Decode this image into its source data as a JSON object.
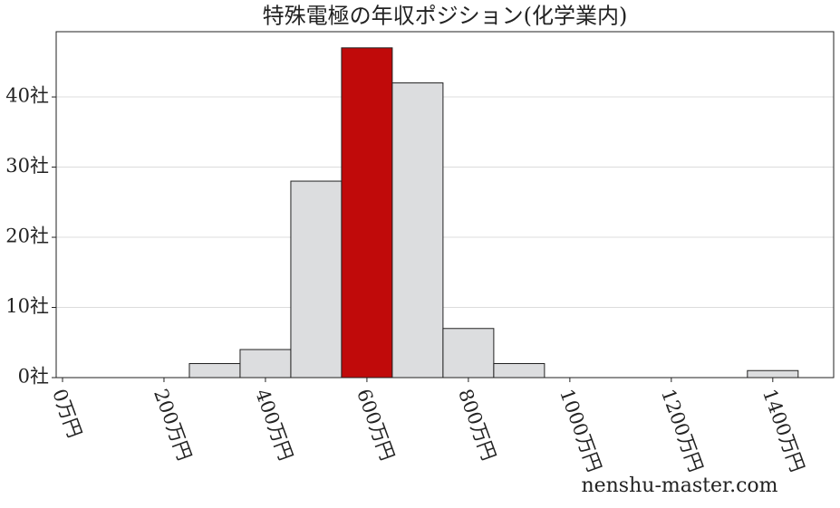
{
  "chart_data": {
    "type": "histogram",
    "title": "特殊電極の年収ポジション(化学業内)",
    "bins": [
      250,
      350,
      450,
      550,
      650,
      750,
      850,
      950,
      1050,
      1150,
      1250,
      1350,
      1450
    ],
    "values": [
      2,
      4,
      28,
      47,
      42,
      7,
      2,
      0,
      0,
      0,
      0,
      1
    ],
    "colors": [
      "#dcdddf",
      "#dcdddf",
      "#dcdddf",
      "#c00a0a",
      "#dcdddf",
      "#dcdddf",
      "#dcdddf",
      "#dcdddf",
      "#dcdddf",
      "#dcdddf",
      "#dcdddf",
      "#dcdddf"
    ],
    "xlim": [
      -12.5,
      1520
    ],
    "xticks": [
      {
        "value": 0,
        "label": "0万円"
      },
      {
        "value": 200,
        "label": "200万円"
      },
      {
        "value": 400,
        "label": "400万円"
      },
      {
        "value": 600,
        "label": "600万円"
      },
      {
        "value": 800,
        "label": "800万円"
      },
      {
        "value": 1000,
        "label": "1000万円"
      },
      {
        "value": 1200,
        "label": "1200万円"
      },
      {
        "value": 1400,
        "label": "1400万円"
      }
    ],
    "ylim": [
      0,
      49.3
    ],
    "yticks": [
      {
        "value": 0,
        "label": "0社"
      },
      {
        "value": 10,
        "label": "10社"
      },
      {
        "value": 20,
        "label": "20社"
      },
      {
        "value": 30,
        "label": "30社"
      },
      {
        "value": 40,
        "label": "40社"
      }
    ],
    "grid": true,
    "watermark": "nenshu-master.com"
  }
}
